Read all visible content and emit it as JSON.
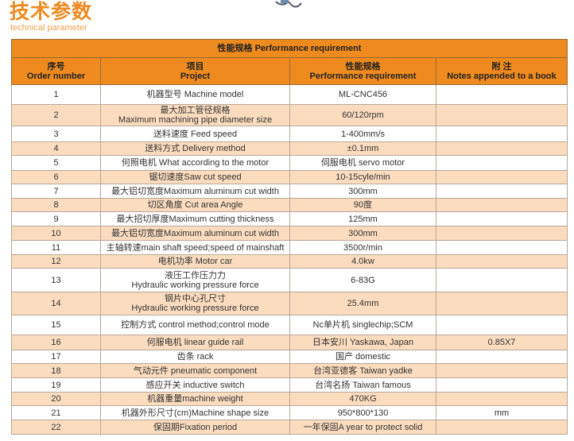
{
  "heading": {
    "title": "技术参数",
    "subtitle": "technical parameter"
  },
  "table": {
    "caption": "性能规格  Performance requirement",
    "columns": [
      {
        "cn": "序号",
        "en": "Order number"
      },
      {
        "cn": "项目",
        "en": "Project"
      },
      {
        "cn": "性能规格",
        "en": "Performance requirement"
      },
      {
        "cn": "附 注",
        "en": "Notes appended to a book"
      }
    ],
    "rows": [
      {
        "no": "1",
        "item": "机器型号 Machine model",
        "spec": "ML-CNC456",
        "note": ""
      },
      {
        "no": "2",
        "item": "最大加工管径规格\nMaximum machining pipe diameter size",
        "spec": "60/120rpm",
        "note": ""
      },
      {
        "no": "3",
        "item": "送料速度 Feed speed",
        "spec": "1-400mm/s",
        "note": ""
      },
      {
        "no": "4",
        "item": "送料方式 Delivery method",
        "spec": "±0.1mm",
        "note": ""
      },
      {
        "no": "5",
        "item": "何照电机 What according to the motor",
        "spec": "伺服电机 servo motor",
        "note": ""
      },
      {
        "no": "6",
        "item": "锯切速度Saw cut speed",
        "spec": "10-15cyle/min",
        "note": ""
      },
      {
        "no": "7",
        "item": "最大铝切宽度Maximum aluminum cut width",
        "spec": "300mm",
        "note": ""
      },
      {
        "no": "8",
        "item": "切区角度 Cut area Angle",
        "spec": "90度",
        "note": ""
      },
      {
        "no": "9",
        "item": "最大招切厚度Maximum cutting thickness",
        "spec": "125mm",
        "note": ""
      },
      {
        "no": "10",
        "item": "最大铝切宽度Maximum aluminum cut width",
        "spec": "300mm",
        "note": ""
      },
      {
        "no": "11",
        "item": "主轴转速main shaft speed;speed of mainshaft",
        "spec": "3500r/min",
        "note": ""
      },
      {
        "no": "12",
        "item": "电机功率 Motor car",
        "spec": "4.0kw",
        "note": ""
      },
      {
        "no": "13",
        "item": "液压工作压力力\nHydraulic working pressure force",
        "spec": "6-83G",
        "note": ""
      },
      {
        "no": "14",
        "item": "钢片中心孔尺寸\nHydraulic working pressure force",
        "spec": "25.4mm",
        "note": ""
      },
      {
        "no": "15",
        "item": "控制方式  control method;control mode",
        "spec": "Nc单片机  singlechip;SCM",
        "note": ""
      },
      {
        "no": "16",
        "item": "何服电机  linear guide rail",
        "spec": "日本安川 Yaskawa, Japan",
        "note": "0.85X7"
      },
      {
        "no": "17",
        "item": "齿条  rack",
        "spec": "国产 domestic",
        "note": ""
      },
      {
        "no": "18",
        "item": "气动元件  pneumatic component",
        "spec": "台湾亚德客 Taiwan yadke",
        "note": ""
      },
      {
        "no": "19",
        "item": "感应开关 inductive switch",
        "spec": "台湾名扬 Taiwan famous",
        "note": ""
      },
      {
        "no": "20",
        "item": "机器重量machine weight",
        "spec": "470KG",
        "note": ""
      },
      {
        "no": "21",
        "item": "机器外形尺寸(cm)Machine shape size",
        "spec": "950*800*130",
        "note": "mm"
      },
      {
        "no": "22",
        "item": "保固期Fixation period",
        "spec": "一年保固A year to protect solid",
        "note": ""
      }
    ]
  },
  "colors": {
    "accent": "#ee8a1e",
    "row_alt": "#fbdcbf"
  }
}
